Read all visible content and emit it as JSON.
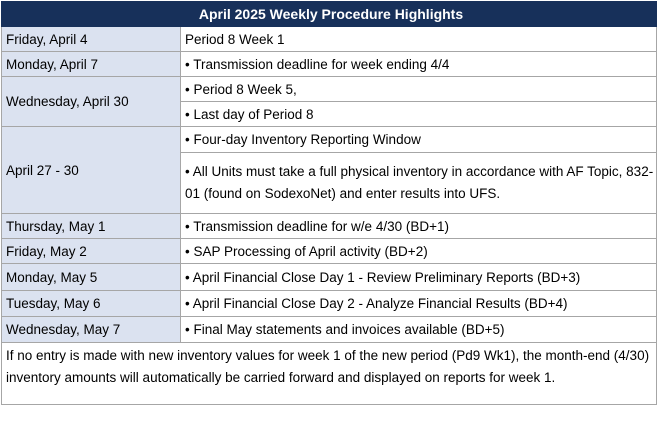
{
  "title": "April 2025 Weekly Procedure Highlights",
  "rows": [
    {
      "date": "Friday, April 4",
      "items": [
        "Period 8 Week 1"
      ],
      "bullet": false
    },
    {
      "date": "Monday, April 7",
      "items": [
        "• Transmission deadline for week ending 4/4"
      ],
      "bullet": true
    },
    {
      "date": "Wednesday, April 30",
      "items": [
        "• Period 8 Week 5,",
        "• Last day of Period 8"
      ],
      "bullet": true
    },
    {
      "date": "April 27 - 30",
      "items": [
        "• Four-day Inventory Reporting Window",
        "• All Units must take a full physical inventory in accordance with AF Topic, 832-01 (found on SodexoNet) and enter results into UFS."
      ],
      "bullet": true
    },
    {
      "date": "Thursday, May 1",
      "items": [
        "• Transmission deadline for w/e 4/30 (BD+1)"
      ],
      "bullet": true
    },
    {
      "date": "Friday, May 2",
      "items": [
        "• SAP Processing of April activity (BD+2)"
      ],
      "bullet": true
    },
    {
      "date": "Monday, May 5",
      "items": [
        "• April Financial Close Day 1 - Review Preliminary Reports (BD+3)"
      ],
      "bullet": true
    },
    {
      "date": "Tuesday, May 6",
      "items": [
        "• April Financial Close Day 2 - Analyze Financial Results (BD+4)"
      ],
      "bullet": true
    },
    {
      "date": "Wednesday, May 7",
      "items": [
        "• Final May statements and invoices available (BD+5)"
      ],
      "bullet": true
    }
  ],
  "footnote": "If no entry is made with new inventory values for week 1 of the new period (Pd9 Wk1), the month-end (4/30) inventory amounts will automatically be carried forward and displayed on reports  for week 1.",
  "colors": {
    "header_bg": "#17305a",
    "date_bg": "#dbe2f0",
    "border": "#a6a6a6"
  }
}
